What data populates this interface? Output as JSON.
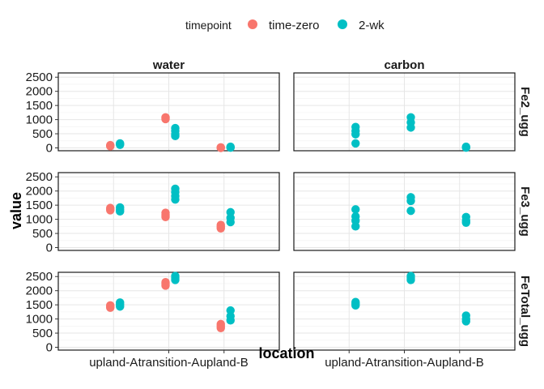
{
  "chart_data": {
    "type": "scatter",
    "xlabel": "location",
    "ylabel": "value",
    "ylim": [
      -100,
      2650
    ],
    "yticks": [
      0,
      500,
      1000,
      1500,
      2000,
      2500
    ],
    "categories": [
      "upland-A",
      "transition-A",
      "upland-B"
    ],
    "facet_columns": [
      "water",
      "carbon"
    ],
    "facet_rows": [
      "Fe2_ugg",
      "Fe3_ugg",
      "FeTotal_ugg"
    ],
    "legend": {
      "title": "timepoint",
      "position": "top",
      "entries": [
        {
          "name": "time-zero",
          "color": "#F8766D"
        },
        {
          "name": "2-wk",
          "color": "#00BFC4"
        }
      ]
    },
    "series": [
      {
        "name": "time-zero",
        "color": "#F8766D",
        "panels": [
          {
            "row": "Fe2_ugg",
            "col": "water",
            "points": [
              [
                "upland-A",
                80
              ],
              [
                "upland-A",
                60
              ],
              [
                "upland-A",
                100
              ],
              [
                "transition-A",
                1080
              ],
              [
                "transition-A",
                1020
              ],
              [
                "transition-A",
                1060
              ],
              [
                "upland-B",
                10
              ],
              [
                "upland-B",
                0
              ],
              [
                "upland-B",
                20
              ]
            ]
          },
          {
            "row": "Fe3_ugg",
            "col": "water",
            "points": [
              [
                "upland-A",
                1400
              ],
              [
                "upland-A",
                1320
              ],
              [
                "upland-A",
                1360
              ],
              [
                "transition-A",
                1230
              ],
              [
                "transition-A",
                1080
              ],
              [
                "transition-A",
                1150
              ],
              [
                "upland-B",
                800
              ],
              [
                "upland-B",
                680
              ],
              [
                "upland-B",
                740
              ]
            ]
          },
          {
            "row": "FeTotal_ugg",
            "col": "water",
            "points": [
              [
                "upland-A",
                1480
              ],
              [
                "upland-A",
                1400
              ],
              [
                "upland-A",
                1440
              ],
              [
                "transition-A",
                2300
              ],
              [
                "transition-A",
                2180
              ],
              [
                "transition-A",
                2240
              ],
              [
                "upland-B",
                820
              ],
              [
                "upland-B",
                680
              ],
              [
                "upland-B",
                750
              ]
            ]
          }
        ]
      },
      {
        "name": "2-wk",
        "color": "#00BFC4",
        "panels": [
          {
            "row": "Fe2_ugg",
            "col": "water",
            "points": [
              [
                "upland-A",
                160
              ],
              [
                "upland-A",
                110
              ],
              [
                "upland-A",
                140
              ],
              [
                "transition-A",
                700
              ],
              [
                "transition-A",
                600
              ],
              [
                "transition-A",
                480
              ],
              [
                "transition-A",
                420
              ],
              [
                "upland-B",
                40
              ],
              [
                "upland-B",
                10
              ],
              [
                "upland-B",
                20
              ]
            ]
          },
          {
            "row": "Fe3_ugg",
            "col": "water",
            "points": [
              [
                "upland-A",
                1420
              ],
              [
                "upland-A",
                1280
              ],
              [
                "upland-A",
                1350
              ],
              [
                "transition-A",
                2080
              ],
              [
                "transition-A",
                1960
              ],
              [
                "transition-A",
                1820
              ],
              [
                "transition-A",
                1700
              ],
              [
                "upland-B",
                1250
              ],
              [
                "upland-B",
                1050
              ],
              [
                "upland-B",
                900
              ]
            ]
          },
          {
            "row": "FeTotal_ugg",
            "col": "water",
            "points": [
              [
                "upland-A",
                1580
              ],
              [
                "upland-A",
                1440
              ],
              [
                "upland-A",
                1510
              ],
              [
                "transition-A",
                2520
              ],
              [
                "transition-A",
                2380
              ],
              [
                "transition-A",
                2450
              ],
              [
                "upland-B",
                1300
              ],
              [
                "upland-B",
                1100
              ],
              [
                "upland-B",
                950
              ]
            ]
          },
          {
            "row": "Fe2_ugg",
            "col": "carbon",
            "points": [
              [
                "upland-A",
                740
              ],
              [
                "upland-A",
                600
              ],
              [
                "upland-A",
                480
              ],
              [
                "upland-A",
                160
              ],
              [
                "transition-A",
                1080
              ],
              [
                "transition-A",
                900
              ],
              [
                "transition-A",
                720
              ],
              [
                "upland-B",
                40
              ],
              [
                "upland-B",
                10
              ],
              [
                "upland-B",
                20
              ]
            ]
          },
          {
            "row": "Fe3_ugg",
            "col": "carbon",
            "points": [
              [
                "upland-A",
                1350
              ],
              [
                "upland-A",
                1100
              ],
              [
                "upland-A",
                950
              ],
              [
                "upland-A",
                750
              ],
              [
                "transition-A",
                1780
              ],
              [
                "transition-A",
                1650
              ],
              [
                "transition-A",
                1300
              ],
              [
                "upland-B",
                1080
              ],
              [
                "upland-B",
                950
              ],
              [
                "upland-B",
                880
              ]
            ]
          },
          {
            "row": "FeTotal_ugg",
            "col": "carbon",
            "points": [
              [
                "upland-A",
                1600
              ],
              [
                "upland-A",
                1480
              ],
              [
                "upland-A",
                1540
              ],
              [
                "transition-A",
                2520
              ],
              [
                "transition-A",
                2380
              ],
              [
                "transition-A",
                2450
              ],
              [
                "upland-B",
                1120
              ],
              [
                "upland-B",
                1000
              ],
              [
                "upland-B",
                920
              ]
            ]
          }
        ]
      }
    ],
    "grid": true
  }
}
